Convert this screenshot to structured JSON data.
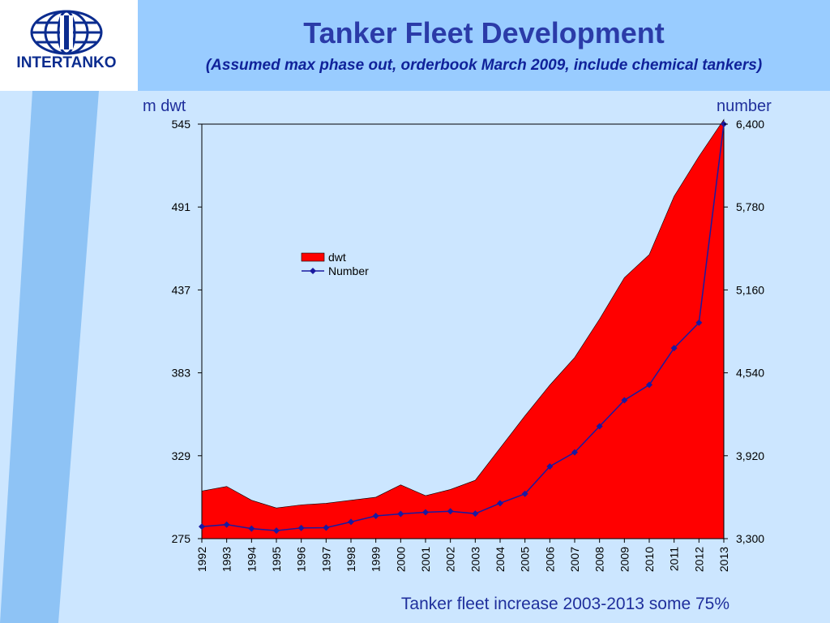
{
  "header": {
    "title": "Tanker Fleet Development",
    "subtitle": "(Assumed max phase out, orderbook March 2009, include chemical  tankers)"
  },
  "logo": {
    "text": "INTERTANKO",
    "icon": "globe-icon"
  },
  "axis_units": {
    "left": "m dwt",
    "right": "number"
  },
  "footnote": "Tanker fleet increase 2003-2013 some 75%",
  "colors": {
    "header_band": "#99ccff",
    "panel": "#cce6ff",
    "stripe": "#8ec3f5",
    "dwt_fill": "#ff0000",
    "number_line": "#1a1aa0",
    "title_text": "#2b3ba8"
  },
  "chart_data": {
    "type": "area",
    "x": [
      "1992",
      "1993",
      "1994",
      "1995",
      "1996",
      "1997",
      "1998",
      "1999",
      "2000",
      "2001",
      "2002",
      "2003",
      "2004",
      "2005",
      "2006",
      "2007",
      "2008",
      "2009",
      "2010",
      "2011",
      "2012",
      "2013"
    ],
    "series": [
      {
        "name": "dwt",
        "type": "area",
        "axis": "left",
        "values": [
          306,
          309,
          300,
          295,
          297,
          298,
          300,
          302,
          310,
          303,
          307,
          313,
          334,
          355,
          375,
          393,
          418,
          445,
          460,
          498,
          524,
          548
        ]
      },
      {
        "name": "Number",
        "type": "line",
        "axis": "right",
        "marker": "diamond",
        "values": [
          3390,
          3405,
          3375,
          3360,
          3380,
          3382,
          3425,
          3470,
          3485,
          3497,
          3505,
          3487,
          3565,
          3635,
          3840,
          3945,
          4140,
          4335,
          4450,
          4725,
          4915,
          6400
        ]
      }
    ],
    "y_left": {
      "label": "m dwt",
      "ticks": [
        "545",
        "491",
        "437",
        "383",
        "329",
        "275"
      ],
      "range": [
        275,
        545
      ]
    },
    "y_right": {
      "label": "number",
      "ticks": [
        "6,400",
        "5,780",
        "5,160",
        "4,540",
        "3,920",
        "3,300"
      ],
      "range": [
        3300,
        6400
      ]
    },
    "legend": {
      "position": "inside-upper-left",
      "entries": [
        "dwt",
        "Number"
      ]
    },
    "grid": false
  }
}
